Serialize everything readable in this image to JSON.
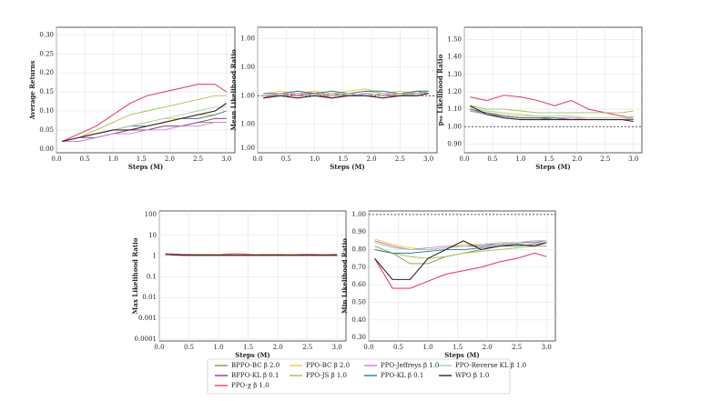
{
  "chart_data": [
    {
      "type": "line",
      "xlabel": "Steps (M)",
      "ylabel": "Average Returns",
      "xlim": [
        0,
        3.15
      ],
      "xticks": [
        {
          "value": 0,
          "label": "0.0"
        },
        0.5,
        {
          "value": 1,
          "label": "1.0"
        },
        1.5,
        {
          "value": 2,
          "label": "2.0"
        },
        2.5,
        {
          "value": 3,
          "label": "3.0"
        }
      ],
      "ylim": [
        -0.01,
        0.32
      ],
      "yticks": [
        {
          "value": 0,
          "label": "0.00"
        },
        0.05,
        {
          "value": 0.1,
          "label": "0.10"
        },
        0.15,
        {
          "value": 0.2,
          "label": "0.20"
        },
        0.25,
        {
          "value": 0.3,
          "label": "0.30"
        }
      ],
      "x": [
        0.1,
        0.4,
        0.7,
        1.0,
        1.3,
        1.6,
        1.9,
        2.2,
        2.5,
        2.8,
        3.0
      ],
      "series": [
        {
          "values": [
            0.02,
            0.02,
            0.03,
            0.04,
            0.05,
            0.05,
            0.06,
            0.06,
            0.07,
            0.07,
            0.07
          ]
        },
        {
          "values": [
            0.02,
            0.03,
            0.03,
            0.04,
            0.05,
            0.05,
            0.06,
            0.06,
            0.07,
            0.08,
            0.08
          ]
        },
        {
          "values": [
            0.02,
            0.04,
            0.06,
            0.09,
            0.12,
            0.14,
            0.15,
            0.16,
            0.17,
            0.17,
            0.15
          ]
        },
        {
          "values": [
            0.02,
            0.03,
            0.04,
            0.05,
            0.06,
            0.07,
            0.08,
            0.08,
            0.09,
            0.09,
            0.1
          ]
        },
        {
          "values": [
            0.02,
            0.03,
            0.05,
            0.07,
            0.09,
            0.1,
            0.11,
            0.12,
            0.13,
            0.14,
            0.14
          ]
        },
        {
          "values": [
            0.02,
            0.02,
            0.03,
            0.04,
            0.04,
            0.05,
            0.05,
            0.06,
            0.06,
            0.07,
            0.07
          ]
        },
        {
          "values": [
            0.02,
            0.03,
            0.04,
            0.05,
            0.06,
            0.06,
            0.07,
            0.08,
            0.08,
            0.09,
            0.1
          ]
        },
        {
          "values": [
            0.02,
            0.03,
            0.04,
            0.05,
            0.06,
            0.07,
            0.08,
            0.09,
            0.1,
            0.11,
            0.11
          ]
        },
        {
          "values": [
            0.02,
            0.03,
            0.04,
            0.05,
            0.05,
            0.06,
            0.07,
            0.08,
            0.09,
            0.1,
            0.12
          ]
        }
      ]
    },
    {
      "type": "line",
      "xlabel": "Steps (M)",
      "ylabel": "Mean Likelihood Ratio",
      "reference_line": 1,
      "xlim": [
        0,
        3.15
      ],
      "xticks": [
        {
          "value": 0,
          "label": "0.0"
        },
        0.5,
        {
          "value": 1,
          "label": "1.0"
        },
        1.5,
        {
          "value": 2,
          "label": "2.0"
        },
        2.5,
        {
          "value": 3,
          "label": "3.0"
        }
      ],
      "ylim": [
        0.975,
        1.03
      ],
      "yticks": [
        {
          "value": 1.025,
          "label": "1.00"
        },
        {
          "value": 1.0125,
          "label": "1.00"
        },
        {
          "value": 1,
          "label": "1.00"
        },
        {
          "value": 0.9875,
          "label": "1.00"
        },
        {
          "value": 0.977,
          "label": "1.00"
        }
      ],
      "x": [
        0.1,
        0.4,
        0.7,
        1.0,
        1.3,
        1.6,
        1.9,
        2.2,
        2.5,
        2.8,
        3.0
      ],
      "series": [
        {
          "values": [
            1.0,
            1.001,
            1.0,
            1.002,
            1.0,
            1.001,
            1.0,
            1.001,
            1.0,
            1.002,
            1.001
          ]
        },
        {
          "values": [
            1.0,
            1.0,
            1.001,
            1.0,
            1.001,
            1.0,
            1.001,
            1.0,
            1.001,
            1.0,
            1.001
          ]
        },
        {
          "values": [
            0.999,
            1.001,
            1.0,
            1.001,
            0.999,
            1.0,
            1.001,
            1.0,
            1.0,
            1.001,
            1.002
          ]
        },
        {
          "values": [
            1.001,
            1.002,
            1.001,
            1.002,
            1.001,
            1.002,
            1.003,
            1.001,
            1.002,
            1.001,
            1.002
          ]
        },
        {
          "values": [
            1.0,
            1.001,
            1.002,
            1.001,
            1.0,
            1.001,
            1.002,
            1.001,
            1.0,
            1.001,
            1.002
          ]
        },
        {
          "values": [
            1.0,
            1.0,
            1.001,
            1.001,
            1.0,
            1.0,
            1.001,
            1.0,
            1.001,
            1.001,
            1.001
          ]
        },
        {
          "values": [
            1.001,
            1.001,
            1.002,
            1.001,
            1.002,
            1.001,
            1.002,
            1.002,
            1.001,
            1.002,
            1.002
          ]
        },
        {
          "values": [
            1.0,
            1.001,
            1.001,
            1.0,
            1.001,
            1.001,
            1.0,
            1.001,
            1.001,
            1.0,
            1.001
          ]
        },
        {
          "values": [
            0.999,
            1.0,
            0.999,
            1.0,
            0.999,
            1.0,
            1.0,
            0.999,
            1.0,
            1.0,
            1.001
          ]
        }
      ]
    },
    {
      "type": "line",
      "xlabel": "Steps (M)",
      "ylabel": "p₉₀ Likelihood Ratio",
      "reference_line": 1,
      "xlim": [
        0,
        3.15
      ],
      "xticks": [
        {
          "value": 0,
          "label": "0.0"
        },
        0.5,
        {
          "value": 1,
          "label": "1.0"
        },
        1.5,
        {
          "value": 2,
          "label": "2.0"
        },
        2.5,
        {
          "value": 3,
          "label": "3.0"
        }
      ],
      "ylim": [
        0.85,
        1.57
      ],
      "yticks": [
        {
          "value": 0.9,
          "label": "0.90"
        },
        {
          "value": 1,
          "label": "1.00"
        },
        {
          "value": 1.1,
          "label": "1.10"
        },
        {
          "value": 1.2,
          "label": "1.20"
        },
        {
          "value": 1.3,
          "label": "1.30"
        },
        {
          "value": 1.4,
          "label": "1.40"
        },
        {
          "value": 1.5,
          "label": "1.50"
        }
      ],
      "x": [
        0.1,
        0.4,
        0.7,
        1.0,
        1.3,
        1.6,
        1.9,
        2.2,
        2.5,
        2.8,
        3.0
      ],
      "series": [
        {
          "values": [
            1.1,
            1.07,
            1.06,
            1.05,
            1.05,
            1.05,
            1.04,
            1.04,
            1.04,
            1.04,
            1.04
          ]
        },
        {
          "values": [
            1.09,
            1.07,
            1.06,
            1.05,
            1.05,
            1.04,
            1.04,
            1.04,
            1.04,
            1.04,
            1.04
          ]
        },
        {
          "values": [
            1.17,
            1.15,
            1.18,
            1.17,
            1.15,
            1.12,
            1.15,
            1.1,
            1.08,
            1.06,
            1.05
          ]
        },
        {
          "values": [
            1.1,
            1.08,
            1.07,
            1.06,
            1.06,
            1.05,
            1.05,
            1.05,
            1.05,
            1.05,
            1.05
          ]
        },
        {
          "values": [
            1.12,
            1.1,
            1.1,
            1.09,
            1.08,
            1.08,
            1.08,
            1.08,
            1.08,
            1.08,
            1.09
          ]
        },
        {
          "values": [
            1.09,
            1.07,
            1.06,
            1.05,
            1.05,
            1.05,
            1.05,
            1.04,
            1.04,
            1.04,
            1.05
          ]
        },
        {
          "values": [
            1.1,
            1.08,
            1.06,
            1.05,
            1.05,
            1.05,
            1.04,
            1.04,
            1.04,
            1.04,
            1.04
          ]
        },
        {
          "values": [
            1.11,
            1.09,
            1.08,
            1.07,
            1.06,
            1.06,
            1.06,
            1.05,
            1.05,
            1.05,
            1.06
          ]
        },
        {
          "values": [
            1.12,
            1.07,
            1.05,
            1.04,
            1.04,
            1.04,
            1.04,
            1.04,
            1.04,
            1.04,
            1.03
          ]
        }
      ]
    },
    {
      "type": "line",
      "xlabel": "Steps (M)",
      "ylabel": "Max Likelihood Ratio",
      "yscale": "log",
      "xlim": [
        0,
        3.15
      ],
      "xticks": [
        {
          "value": 0,
          "label": "0.0"
        },
        0.5,
        {
          "value": 1,
          "label": "1.0"
        },
        1.5,
        {
          "value": 2,
          "label": "2.0"
        },
        2.5,
        {
          "value": 3,
          "label": "3.0"
        }
      ],
      "ylim": [
        8e-05,
        150
      ],
      "yticks": [
        0.0001,
        0.001,
        0.01,
        0.1,
        1,
        10,
        100
      ],
      "x": [
        0.1,
        0.4,
        0.7,
        1.0,
        1.3,
        1.6,
        1.9,
        2.2,
        2.5,
        2.8,
        3.0
      ],
      "series": [
        {
          "values": [
            1.2,
            1.1,
            1.1,
            1.1,
            1.1,
            1.1,
            1.1,
            1.1,
            1.1,
            1.1,
            1.1
          ]
        },
        {
          "values": [
            1.2,
            1.1,
            1.1,
            1.1,
            1.1,
            1.1,
            1.1,
            1.1,
            1.1,
            1.1,
            1.1
          ]
        },
        {
          "values": [
            1.3,
            1.2,
            1.2,
            1.2,
            1.3,
            1.2,
            1.2,
            1.2,
            1.2,
            1.2,
            1.2
          ]
        },
        {
          "values": [
            1.2,
            1.1,
            1.1,
            1.2,
            1.1,
            1.2,
            1.1,
            1.2,
            1.1,
            1.2,
            1.1
          ]
        },
        {
          "values": [
            1.2,
            1.1,
            1.2,
            1.1,
            1.1,
            1.1,
            1.2,
            1.1,
            1.1,
            1.1,
            1.1
          ]
        },
        {
          "values": [
            1.2,
            1.1,
            1.1,
            1.1,
            1.1,
            1.1,
            1.1,
            1.1,
            1.1,
            1.1,
            1.1
          ]
        },
        {
          "values": [
            1.2,
            1.1,
            1.1,
            1.1,
            1.1,
            1.1,
            1.1,
            1.1,
            1.1,
            1.1,
            1.1
          ]
        },
        {
          "values": [
            1.2,
            1.1,
            1.1,
            1.1,
            1.1,
            1.1,
            1.1,
            1.1,
            1.1,
            1.1,
            1.1
          ]
        },
        {
          "values": [
            1.2,
            1.1,
            1.1,
            1.1,
            1.1,
            1.1,
            1.1,
            1.1,
            1.1,
            1.1,
            1.1
          ]
        }
      ]
    },
    {
      "type": "line",
      "xlabel": "Steps (M)",
      "ylabel": "Min Likelihood Ratio",
      "reference_line": 1,
      "xlim": [
        0,
        3.15
      ],
      "xticks": [
        {
          "value": 0,
          "label": "0.0"
        },
        0.5,
        {
          "value": 1,
          "label": "1.0"
        },
        1.5,
        {
          "value": 2,
          "label": "2.0"
        },
        2.5,
        {
          "value": 3,
          "label": "3.0"
        }
      ],
      "ylim": [
        0.28,
        1.02
      ],
      "yticks": [
        {
          "value": 0.3,
          "label": "0.30"
        },
        {
          "value": 0.4,
          "label": "0.40"
        },
        {
          "value": 0.5,
          "label": "0.50"
        },
        {
          "value": 0.6,
          "label": "0.60"
        },
        {
          "value": 0.7,
          "label": "0.70"
        },
        {
          "value": 0.8,
          "label": "0.80"
        },
        {
          "value": 0.9,
          "label": "0.90"
        },
        {
          "value": 1,
          "label": "1.00"
        }
      ],
      "x": [
        0.1,
        0.4,
        0.7,
        1.0,
        1.3,
        1.6,
        1.9,
        2.2,
        2.5,
        2.8,
        3.0
      ],
      "series": [
        {
          "values": [
            0.82,
            0.78,
            0.72,
            0.72,
            0.76,
            0.78,
            0.8,
            0.82,
            0.83,
            0.82,
            0.82
          ]
        },
        {
          "values": [
            0.85,
            0.82,
            0.8,
            0.8,
            0.81,
            0.82,
            0.82,
            0.83,
            0.84,
            0.84,
            0.85
          ]
        },
        {
          "values": [
            0.75,
            0.58,
            0.58,
            0.62,
            0.66,
            0.68,
            0.7,
            0.73,
            0.75,
            0.78,
            0.76
          ]
        },
        {
          "values": [
            0.86,
            0.83,
            0.81,
            0.8,
            0.81,
            0.83,
            0.83,
            0.84,
            0.84,
            0.85,
            0.85
          ]
        },
        {
          "values": [
            0.8,
            0.78,
            0.76,
            0.75,
            0.76,
            0.78,
            0.79,
            0.8,
            0.81,
            0.82,
            0.82
          ]
        },
        {
          "values": [
            0.85,
            0.82,
            0.8,
            0.81,
            0.82,
            0.82,
            0.83,
            0.83,
            0.84,
            0.85,
            0.85
          ]
        },
        {
          "values": [
            0.8,
            0.78,
            0.78,
            0.79,
            0.8,
            0.8,
            0.81,
            0.82,
            0.82,
            0.83,
            0.84
          ]
        },
        {
          "values": [
            0.84,
            0.81,
            0.8,
            0.8,
            0.81,
            0.82,
            0.83,
            0.84,
            0.84,
            0.85,
            0.85
          ]
        },
        {
          "values": [
            0.75,
            0.63,
            0.63,
            0.75,
            0.8,
            0.85,
            0.8,
            0.82,
            0.83,
            0.82,
            0.84
          ]
        }
      ]
    }
  ],
  "legend": [
    {
      "name": "BPPO-BC β 2.0",
      "color": "#7f9a4a"
    },
    {
      "name": "BPPO-KL β 0.1",
      "color": "#8e3a8e"
    },
    {
      "name": "PPO-χ β 1.0",
      "color": "#e8436e"
    },
    {
      "name": "PPO-BC β 2.0",
      "color": "#f0cc3a"
    },
    {
      "name": "PPO-JS β 1.0",
      "color": "#a8c050"
    },
    {
      "name": "PPO-Jeffreys β 1.0",
      "color": "#d080d8"
    },
    {
      "name": "PPO-KL β 0.1",
      "color": "#2a7aa0"
    },
    {
      "name": "PPO-Reverse KL β 1.0",
      "color": "#9fd4a8"
    },
    {
      "name": "WPO β 1.0",
      "color": "#3a2020"
    }
  ]
}
